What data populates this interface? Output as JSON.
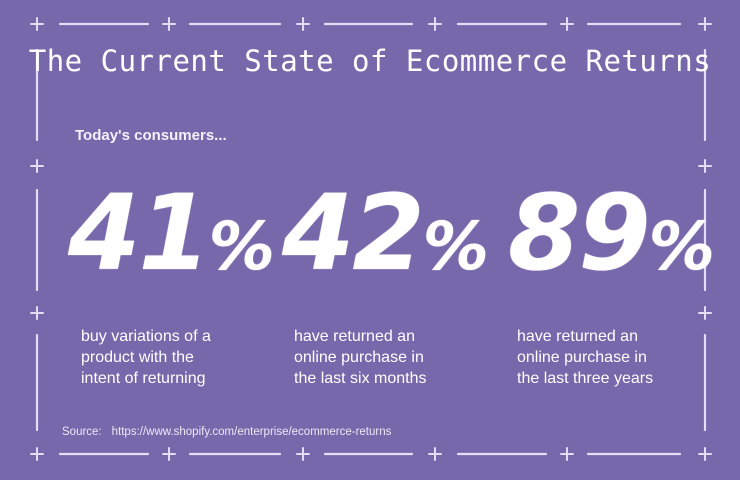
{
  "title": "The Current State of Ecommerce Returns",
  "intro": "Today's consumers...",
  "stats": [
    {
      "value": "41",
      "unit": "%",
      "description": [
        "buy variations of a",
        "product with the",
        "intent of returning"
      ]
    },
    {
      "value": "42",
      "unit": "%",
      "description": [
        "have returned an",
        "online purchase in",
        "the last six months"
      ]
    },
    {
      "value": "89",
      "unit": "%",
      "description": [
        "have returned an",
        "online purchase in",
        "the last three years"
      ]
    }
  ],
  "source": {
    "label": "Source:",
    "url": "https://www.shopify.com/enterprise/ecommerce-returns"
  },
  "colors": {
    "background": "#7767ab",
    "frame": "#e4def4",
    "text": "#ffffff"
  },
  "decorations": {
    "frame_icon": "dashed-border-with-plus-markers"
  }
}
